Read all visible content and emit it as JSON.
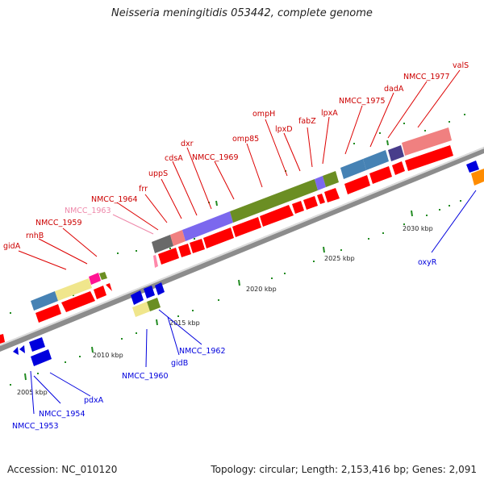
{
  "title": "Neisseria meningitidis 053442, complete genome",
  "footer": {
    "accession": "Accession: NC_010120",
    "summary": "Topology: circular; Length: 2,153,416 bp; Genes: 2,091"
  },
  "tick_labels": [
    "2005 kbp",
    "2010 kbp",
    "2015 kbp",
    "2020 kbp",
    "2025 kbp",
    "2030 kbp"
  ],
  "red_labels": [
    "gidA",
    "rnhB",
    "NMCC_1959",
    "NMCC_1964",
    "frr",
    "uppS",
    "cdsA",
    "dxr",
    "NMCC_1969",
    "omp85",
    "ompH",
    "lpxD",
    "fabZ",
    "lpxA",
    "NMCC_1975",
    "dadA",
    "NMCC_1977",
    "valS"
  ],
  "pink_labels": [
    "NMCC_1963"
  ],
  "blue_labels": [
    "NMCC_1953",
    "NMCC_1954",
    "pdxA",
    "NMCC_1960",
    "gidB",
    "NMCC_1962",
    "oxyR"
  ],
  "colors": {
    "gene_red": "#ff0000",
    "red_label": "#cc0000",
    "blue": "#0000dd",
    "pink_label": "#ee88aa",
    "olive": "#6b8e23",
    "steelblue": "#4682b4",
    "khaki": "#f0e68c",
    "slateblue": "#7b68ee",
    "darkslate": "#483d8b",
    "lightcoral": "#f08080",
    "darkgray": "#696969",
    "magenta": "#ff1493",
    "orange": "#ff8c00",
    "tick_green": "#228b22",
    "backbone": "#8c8c8c"
  }
}
